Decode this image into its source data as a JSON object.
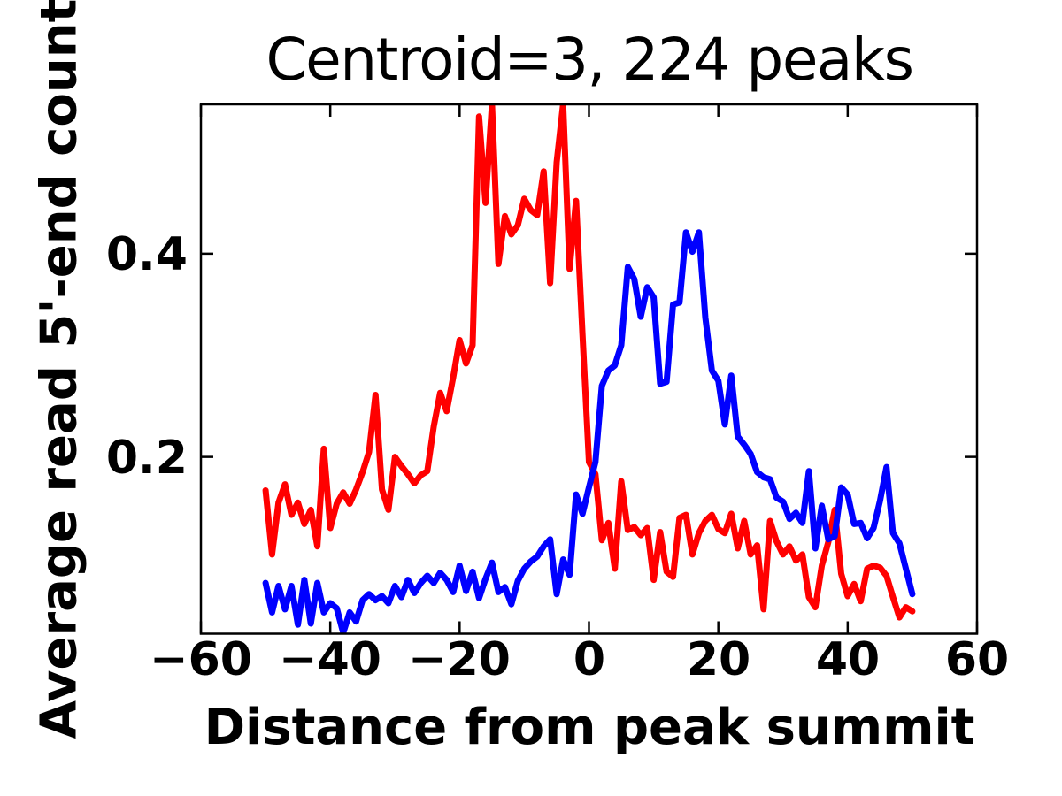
{
  "title": "Centroid=3, 224 peaks",
  "chart_data": {
    "type": "line",
    "title": "Centroid=3, 224 peaks",
    "xlabel": "Distance from peak summit",
    "ylabel": "Average read 5'-end count",
    "xlim": [
      -60,
      60
    ],
    "ylim": [
      0.026,
      0.547
    ],
    "x_ticks": [
      -60,
      -40,
      -20,
      0,
      20,
      40,
      60
    ],
    "x_tick_labels": [
      "−60",
      "−40",
      "−20",
      "0",
      "20",
      "40",
      "60"
    ],
    "y_ticks": [
      0.2,
      0.4
    ],
    "y_tick_labels": [
      "0.2",
      "0.4"
    ],
    "grid": false,
    "legend": null,
    "axis_color": "#000000",
    "x": [
      -50,
      -49,
      -48,
      -47,
      -46,
      -45,
      -44,
      -43,
      -42,
      -41,
      -40,
      -39,
      -38,
      -37,
      -36,
      -35,
      -34,
      -33,
      -32,
      -31,
      -30,
      -29,
      -28,
      -27,
      -26,
      -25,
      -24,
      -23,
      -22,
      -21,
      -20,
      -19,
      -18,
      -17,
      -16,
      -15,
      -14,
      -13,
      -12,
      -11,
      -10,
      -9,
      -8,
      -7,
      -6,
      -5,
      -4,
      -3,
      -2,
      -1,
      0,
      1,
      2,
      3,
      4,
      5,
      6,
      7,
      8,
      9,
      10,
      11,
      12,
      13,
      14,
      15,
      16,
      17,
      18,
      19,
      20,
      21,
      22,
      23,
      24,
      25,
      26,
      27,
      28,
      29,
      30,
      31,
      32,
      33,
      34,
      35,
      36,
      37,
      38,
      39,
      40,
      41,
      42,
      43,
      44,
      45,
      46,
      47,
      48,
      49,
      50
    ],
    "series": [
      {
        "name": "red",
        "color": "#ff0000",
        "values": [
          0.167,
          0.104,
          0.155,
          0.173,
          0.143,
          0.155,
          0.134,
          0.148,
          0.112,
          0.208,
          0.13,
          0.154,
          0.165,
          0.154,
          0.168,
          0.185,
          0.205,
          0.261,
          0.168,
          0.148,
          0.2,
          0.191,
          0.183,
          0.174,
          0.182,
          0.186,
          0.23,
          0.263,
          0.245,
          0.278,
          0.315,
          0.292,
          0.31,
          0.535,
          0.45,
          0.547,
          0.39,
          0.437,
          0.419,
          0.428,
          0.454,
          0.443,
          0.438,
          0.481,
          0.371,
          0.49,
          0.547,
          0.385,
          0.452,
          0.32,
          0.195,
          0.183,
          0.118,
          0.135,
          0.09,
          0.176,
          0.128,
          0.131,
          0.123,
          0.13,
          0.079,
          0.126,
          0.087,
          0.082,
          0.14,
          0.143,
          0.104,
          0.125,
          0.137,
          0.143,
          0.129,
          0.125,
          0.144,
          0.11,
          0.137,
          0.104,
          0.113,
          0.05,
          0.137,
          0.117,
          0.104,
          0.112,
          0.098,
          0.104,
          0.062,
          0.052,
          0.093,
          0.116,
          0.148,
          0.085,
          0.063,
          0.075,
          0.058,
          0.09,
          0.093,
          0.091,
          0.083,
          0.062,
          0.042,
          0.052,
          0.048
        ]
      },
      {
        "name": "blue",
        "color": "#0000ff",
        "values": [
          0.076,
          0.047,
          0.073,
          0.05,
          0.073,
          0.035,
          0.079,
          0.036,
          0.076,
          0.047,
          0.056,
          0.051,
          0.027,
          0.047,
          0.038,
          0.059,
          0.065,
          0.059,
          0.063,
          0.056,
          0.073,
          0.062,
          0.079,
          0.066,
          0.076,
          0.083,
          0.076,
          0.086,
          0.079,
          0.067,
          0.093,
          0.068,
          0.087,
          0.061,
          0.08,
          0.096,
          0.067,
          0.072,
          0.055,
          0.078,
          0.09,
          0.097,
          0.102,
          0.112,
          0.119,
          0.065,
          0.099,
          0.084,
          0.163,
          0.144,
          0.17,
          0.195,
          0.27,
          0.285,
          0.29,
          0.31,
          0.387,
          0.375,
          0.338,
          0.367,
          0.357,
          0.272,
          0.274,
          0.35,
          0.352,
          0.421,
          0.402,
          0.421,
          0.337,
          0.285,
          0.275,
          0.232,
          0.28,
          0.22,
          0.212,
          0.203,
          0.185,
          0.18,
          0.178,
          0.16,
          0.156,
          0.139,
          0.145,
          0.135,
          0.186,
          0.11,
          0.152,
          0.119,
          0.122,
          0.17,
          0.163,
          0.134,
          0.135,
          0.12,
          0.13,
          0.157,
          0.19,
          0.125,
          0.115,
          0.09,
          0.065
        ]
      }
    ]
  }
}
